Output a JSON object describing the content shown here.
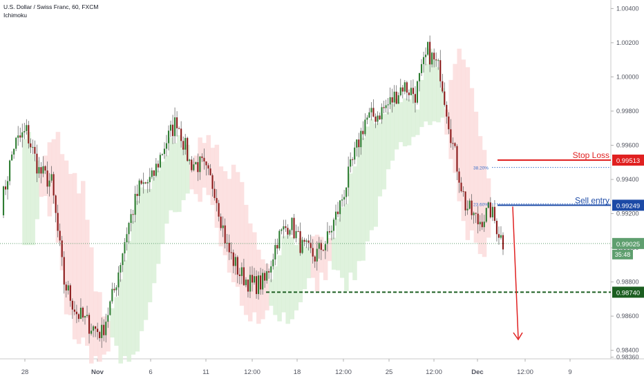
{
  "header": {
    "symbol_title": "U.S. Dollar / Swiss Franc, 60, FXCM",
    "indicator_name": "Ichimoku"
  },
  "colors": {
    "up_candle": "#2e7d32",
    "down_candle": "#8b1a1a",
    "cloud_bull": "#d7efd4",
    "cloud_bear": "#fbd9d9",
    "stop_loss": "#e02020",
    "sell_entry": "#1c4aa6",
    "target": "#1b5e20",
    "current_price": "#5f9f6f",
    "fib": "#3a6fc9"
  },
  "chart_data": {
    "type": "candlestick",
    "title": "U.S. Dollar / Swiss Franc, 60, FXCM",
    "indicator": "Ichimoku",
    "ylim": [
      0.9835,
      1.0045
    ],
    "y_ticks": [
      "1.00400",
      "1.00200",
      "1.00000",
      "0.99800",
      "0.99600",
      "0.99400",
      "0.99200",
      "0.99000",
      "0.98800",
      "0.98600",
      "0.98400",
      "0.98360"
    ],
    "x_ticks": [
      "28",
      "Nov",
      "6",
      "11",
      "12:00",
      "18",
      "12:00",
      "25",
      "12:00",
      "Dec",
      "12:00",
      "9"
    ],
    "price_path": [
      [
        "28",
        0.9925
      ],
      [
        "28",
        0.996
      ],
      [
        "28",
        0.9968
      ],
      [
        "28",
        0.9945
      ],
      [
        "28",
        0.9938
      ],
      [
        "Nov",
        0.988
      ],
      [
        "Nov",
        0.9862
      ],
      [
        "Nov",
        0.9855
      ],
      [
        "Nov",
        0.985
      ],
      [
        "6",
        0.9875
      ],
      [
        "6",
        0.991
      ],
      [
        "6",
        0.9935
      ],
      [
        "6",
        0.994
      ],
      [
        "11",
        0.996
      ],
      [
        "11",
        0.9975
      ],
      [
        "11",
        0.995
      ],
      [
        "11",
        0.9948
      ],
      [
        "12:00",
        0.9935
      ],
      [
        "12:00",
        0.99
      ],
      [
        "12:00",
        0.9885
      ],
      [
        "12:00",
        0.9878
      ],
      [
        "18",
        0.988
      ],
      [
        "18",
        0.9905
      ],
      [
        "18",
        0.9915
      ],
      [
        "18",
        0.99
      ],
      [
        "12:00",
        0.9895
      ],
      [
        "12:00",
        0.9905
      ],
      [
        "12:00",
        0.9925
      ],
      [
        "25",
        0.995
      ],
      [
        "25",
        0.9975
      ],
      [
        "25",
        0.9978
      ],
      [
        "12:00",
        0.9985
      ],
      [
        "12:00",
        0.9995
      ],
      [
        "12:00",
        0.999
      ],
      [
        "Dec",
        1.0015
      ],
      [
        "Dec",
        1.0003
      ],
      [
        "Dec",
        0.996
      ],
      [
        "Dec",
        0.9925
      ],
      [
        "Dec",
        0.9915
      ],
      [
        "Dec",
        0.9922
      ],
      [
        "Dec",
        0.9903
      ]
    ],
    "current_price": "0.99025",
    "countdown": "35:48",
    "annotations": {
      "stop_loss": {
        "label": "Stop Loss",
        "price": "0.99513"
      },
      "sell_entry": {
        "label": "Sell entry",
        "price": "0.99249"
      },
      "take_profit": {
        "price": "0.98740"
      },
      "fib_levels": [
        {
          "label": "38.20%",
          "price": 0.9947
        },
        {
          "label": "23.60%",
          "price": 0.99257
        }
      ]
    }
  }
}
